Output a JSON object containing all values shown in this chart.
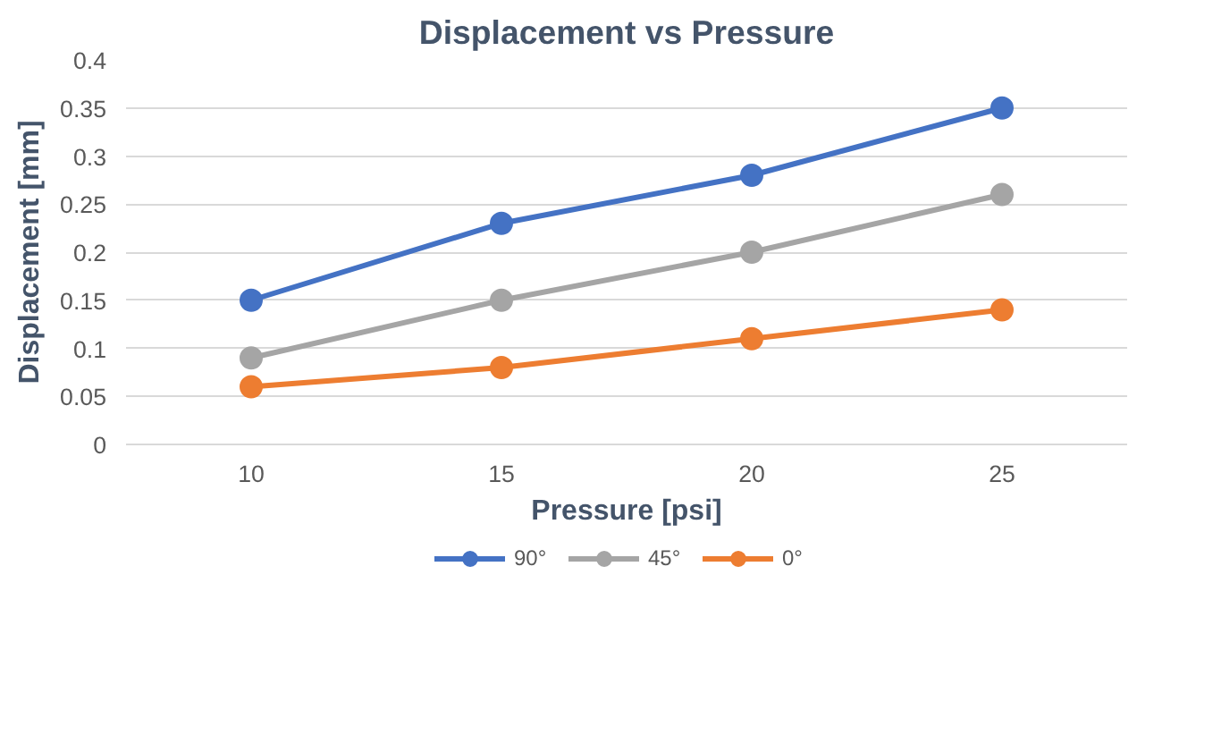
{
  "chart_data": {
    "type": "line",
    "title": "Displacement vs Pressure",
    "xlabel": "Pressure [psi]",
    "ylabel": "Displacement [mm]",
    "categories": [
      "10",
      "15",
      "20",
      "25"
    ],
    "series": [
      {
        "name": "90°",
        "color": "#4472c4",
        "values": [
          0.15,
          0.23,
          0.28,
          0.35
        ]
      },
      {
        "name": "45°",
        "color": "#a5a5a5",
        "values": [
          0.09,
          0.15,
          0.2,
          0.26
        ]
      },
      {
        "name": "0°",
        "color": "#ed7d31",
        "values": [
          0.06,
          0.08,
          0.11,
          0.14
        ]
      }
    ],
    "ylim": [
      0,
      0.4
    ],
    "yticks": [
      0,
      0.05,
      0.1,
      0.15,
      0.2,
      0.25,
      0.3,
      0.35,
      0.4
    ],
    "grid": "y",
    "legend": "bottom",
    "marker": "circle",
    "line_style": "solid"
  }
}
